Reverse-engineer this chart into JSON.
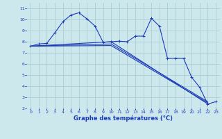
{
  "bg_color": "#cde8ec",
  "grid_color": "#aacdd4",
  "line_color": "#1a3ab8",
  "xlabel": "Graphe des températures (°C)",
  "xlim": [
    -0.5,
    23.5
  ],
  "ylim": [
    2,
    11.5
  ],
  "yticks": [
    2,
    3,
    4,
    5,
    6,
    7,
    8,
    9,
    10,
    11
  ],
  "xticks": [
    0,
    1,
    2,
    3,
    4,
    5,
    6,
    7,
    8,
    9,
    10,
    11,
    12,
    13,
    14,
    15,
    16,
    17,
    18,
    19,
    20,
    21,
    22,
    23
  ],
  "series1_x": [
    0,
    1,
    2,
    3,
    4,
    5,
    6,
    7,
    8,
    9,
    10,
    11,
    12,
    13,
    14,
    15,
    16,
    17,
    18,
    19,
    20,
    21,
    22,
    23
  ],
  "series1_y": [
    7.6,
    7.8,
    7.85,
    8.8,
    9.8,
    10.4,
    10.6,
    10.05,
    9.4,
    7.95,
    8.0,
    8.05,
    8.0,
    8.5,
    8.5,
    10.1,
    9.4,
    6.5,
    6.5,
    6.5,
    4.8,
    3.9,
    2.4,
    2.6
  ],
  "series2_x": [
    0,
    10,
    22
  ],
  "series2_y": [
    7.6,
    8.0,
    2.4
  ],
  "series3_x": [
    0,
    10,
    22
  ],
  "series3_y": [
    7.6,
    7.8,
    2.6
  ],
  "series4_x": [
    0,
    10,
    22
  ],
  "series4_y": [
    7.6,
    7.65,
    2.5
  ]
}
